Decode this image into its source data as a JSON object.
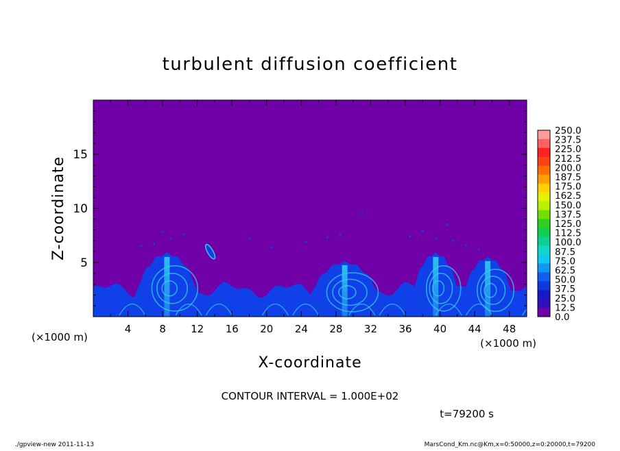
{
  "chart_data": {
    "type": "heatmap",
    "title": "turbulent diffusion coefficient",
    "xlabel": "X-coordinate",
    "ylabel": "Z-coordinate",
    "x_unit_left": "(×1000 m)",
    "x_unit_right": "(×1000 m)",
    "xlim": [
      0,
      50
    ],
    "ylim": [
      0,
      20
    ],
    "x_ticks": [
      "4",
      "8",
      "12",
      "16",
      "20",
      "24",
      "28",
      "32",
      "36",
      "40",
      "44",
      "48"
    ],
    "y_ticks": [
      "5",
      "10",
      "15"
    ],
    "contour_interval": "CONTOUR INTERVAL = 1.000E+02",
    "time_label": "t=79200 s",
    "footer_left": "./gpview-new  2011-11-13",
    "footer_right": "MarsCond_Km.nc@Km,x=0:50000,z=0:20000,t=79200",
    "colorbar": {
      "labels": [
        "250.0",
        "237.5",
        "225.0",
        "212.5",
        "200.0",
        "187.5",
        "175.0",
        "162.5",
        "150.0",
        "137.5",
        "125.0",
        "112.5",
        "100.0",
        "87.5",
        "75.0",
        "62.5",
        "50.0",
        "37.5",
        "25.0",
        "12.5",
        "0.0"
      ],
      "colors": [
        "#ff9a9a",
        "#ff6060",
        "#ff2020",
        "#ff4010",
        "#ff7000",
        "#ffa000",
        "#ffd000",
        "#e8f000",
        "#b8f000",
        "#70e000",
        "#30d020",
        "#10d050",
        "#10d090",
        "#10d8c8",
        "#10c8f0",
        "#1098f0",
        "#1060f0",
        "#1038e0",
        "#1818c8",
        "#3010b8",
        "#7000a8"
      ]
    },
    "background_color": "#7000a8",
    "field_color": "#1040e8",
    "field_highlight_color": "#30d0f0",
    "plumes": [
      {
        "x_center": 8.5,
        "half_width": 4.0,
        "top": 5.8
      },
      {
        "x_center": 29.0,
        "half_width": 4.5,
        "top": 5.0
      },
      {
        "x_center": 39.5,
        "half_width": 3.0,
        "top": 5.8
      },
      {
        "x_center": 45.5,
        "half_width": 3.2,
        "top": 5.4
      }
    ],
    "boundary_layer_top": 2.5,
    "blob": {
      "x": 13.5,
      "z": 6.0
    }
  }
}
